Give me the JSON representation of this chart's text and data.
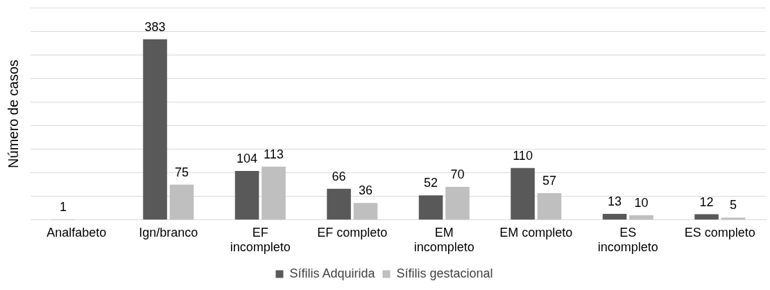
{
  "chart_data": {
    "type": "bar",
    "ylabel": "Número de casos",
    "categories": [
      "Analfabeto",
      "Ign/branco",
      "EF incompleto",
      "EF completo",
      "EM incompleto",
      "EM completo",
      "ES incompleto",
      "ES completo"
    ],
    "series": [
      {
        "name": "Sífilis Adquirida",
        "color": "#595959",
        "values": [
          1,
          383,
          104,
          66,
          52,
          110,
          13,
          12
        ]
      },
      {
        "name": "Sífilis gestacional",
        "color": "#bfbfbf",
        "values": [
          null,
          75,
          113,
          36,
          70,
          57,
          10,
          5
        ]
      }
    ],
    "ylim": [
      0,
      450
    ],
    "yticks": [
      {
        "value": 0,
        "label": null
      },
      {
        "value": 50,
        "label": null
      },
      {
        "value": 100,
        "label": null
      },
      {
        "value": 150,
        "label": null
      },
      {
        "value": 200,
        "label": null
      },
      {
        "value": 250,
        "label": null
      },
      {
        "value": 300,
        "label": null
      },
      {
        "value": 350,
        "label": null
      },
      {
        "value": 400,
        "label": null
      },
      {
        "value": 450,
        "label": null
      }
    ],
    "grid": "y",
    "legend": "bottom",
    "data_labels": true
  }
}
